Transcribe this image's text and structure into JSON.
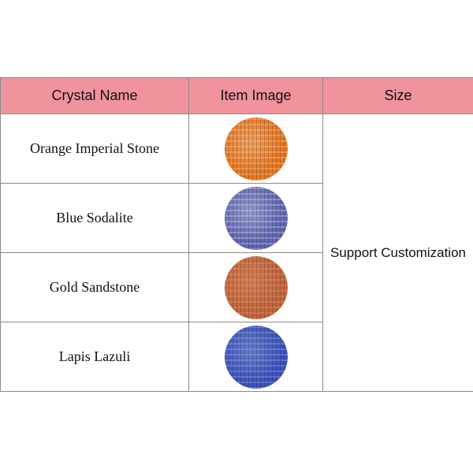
{
  "headers": {
    "name": "Crystal Name",
    "image": "Item Image",
    "size": "Size"
  },
  "rows": [
    {
      "name": "Orange Imperial Stone",
      "color": "#e8741f",
      "fleck": "#f3d9b0"
    },
    {
      "name": "Blue Sodalite",
      "color": "#5f66b2",
      "fleck": "#e2e4f2"
    },
    {
      "name": "Gold Sandstone",
      "color": "#c2643a",
      "fleck": "#e8a27a"
    },
    {
      "name": "Lapis Lazuli",
      "color": "#3c52bd",
      "fleck": "#a9b6e6"
    }
  ],
  "size_value": "Support Customization",
  "header_color": "#f0939d"
}
